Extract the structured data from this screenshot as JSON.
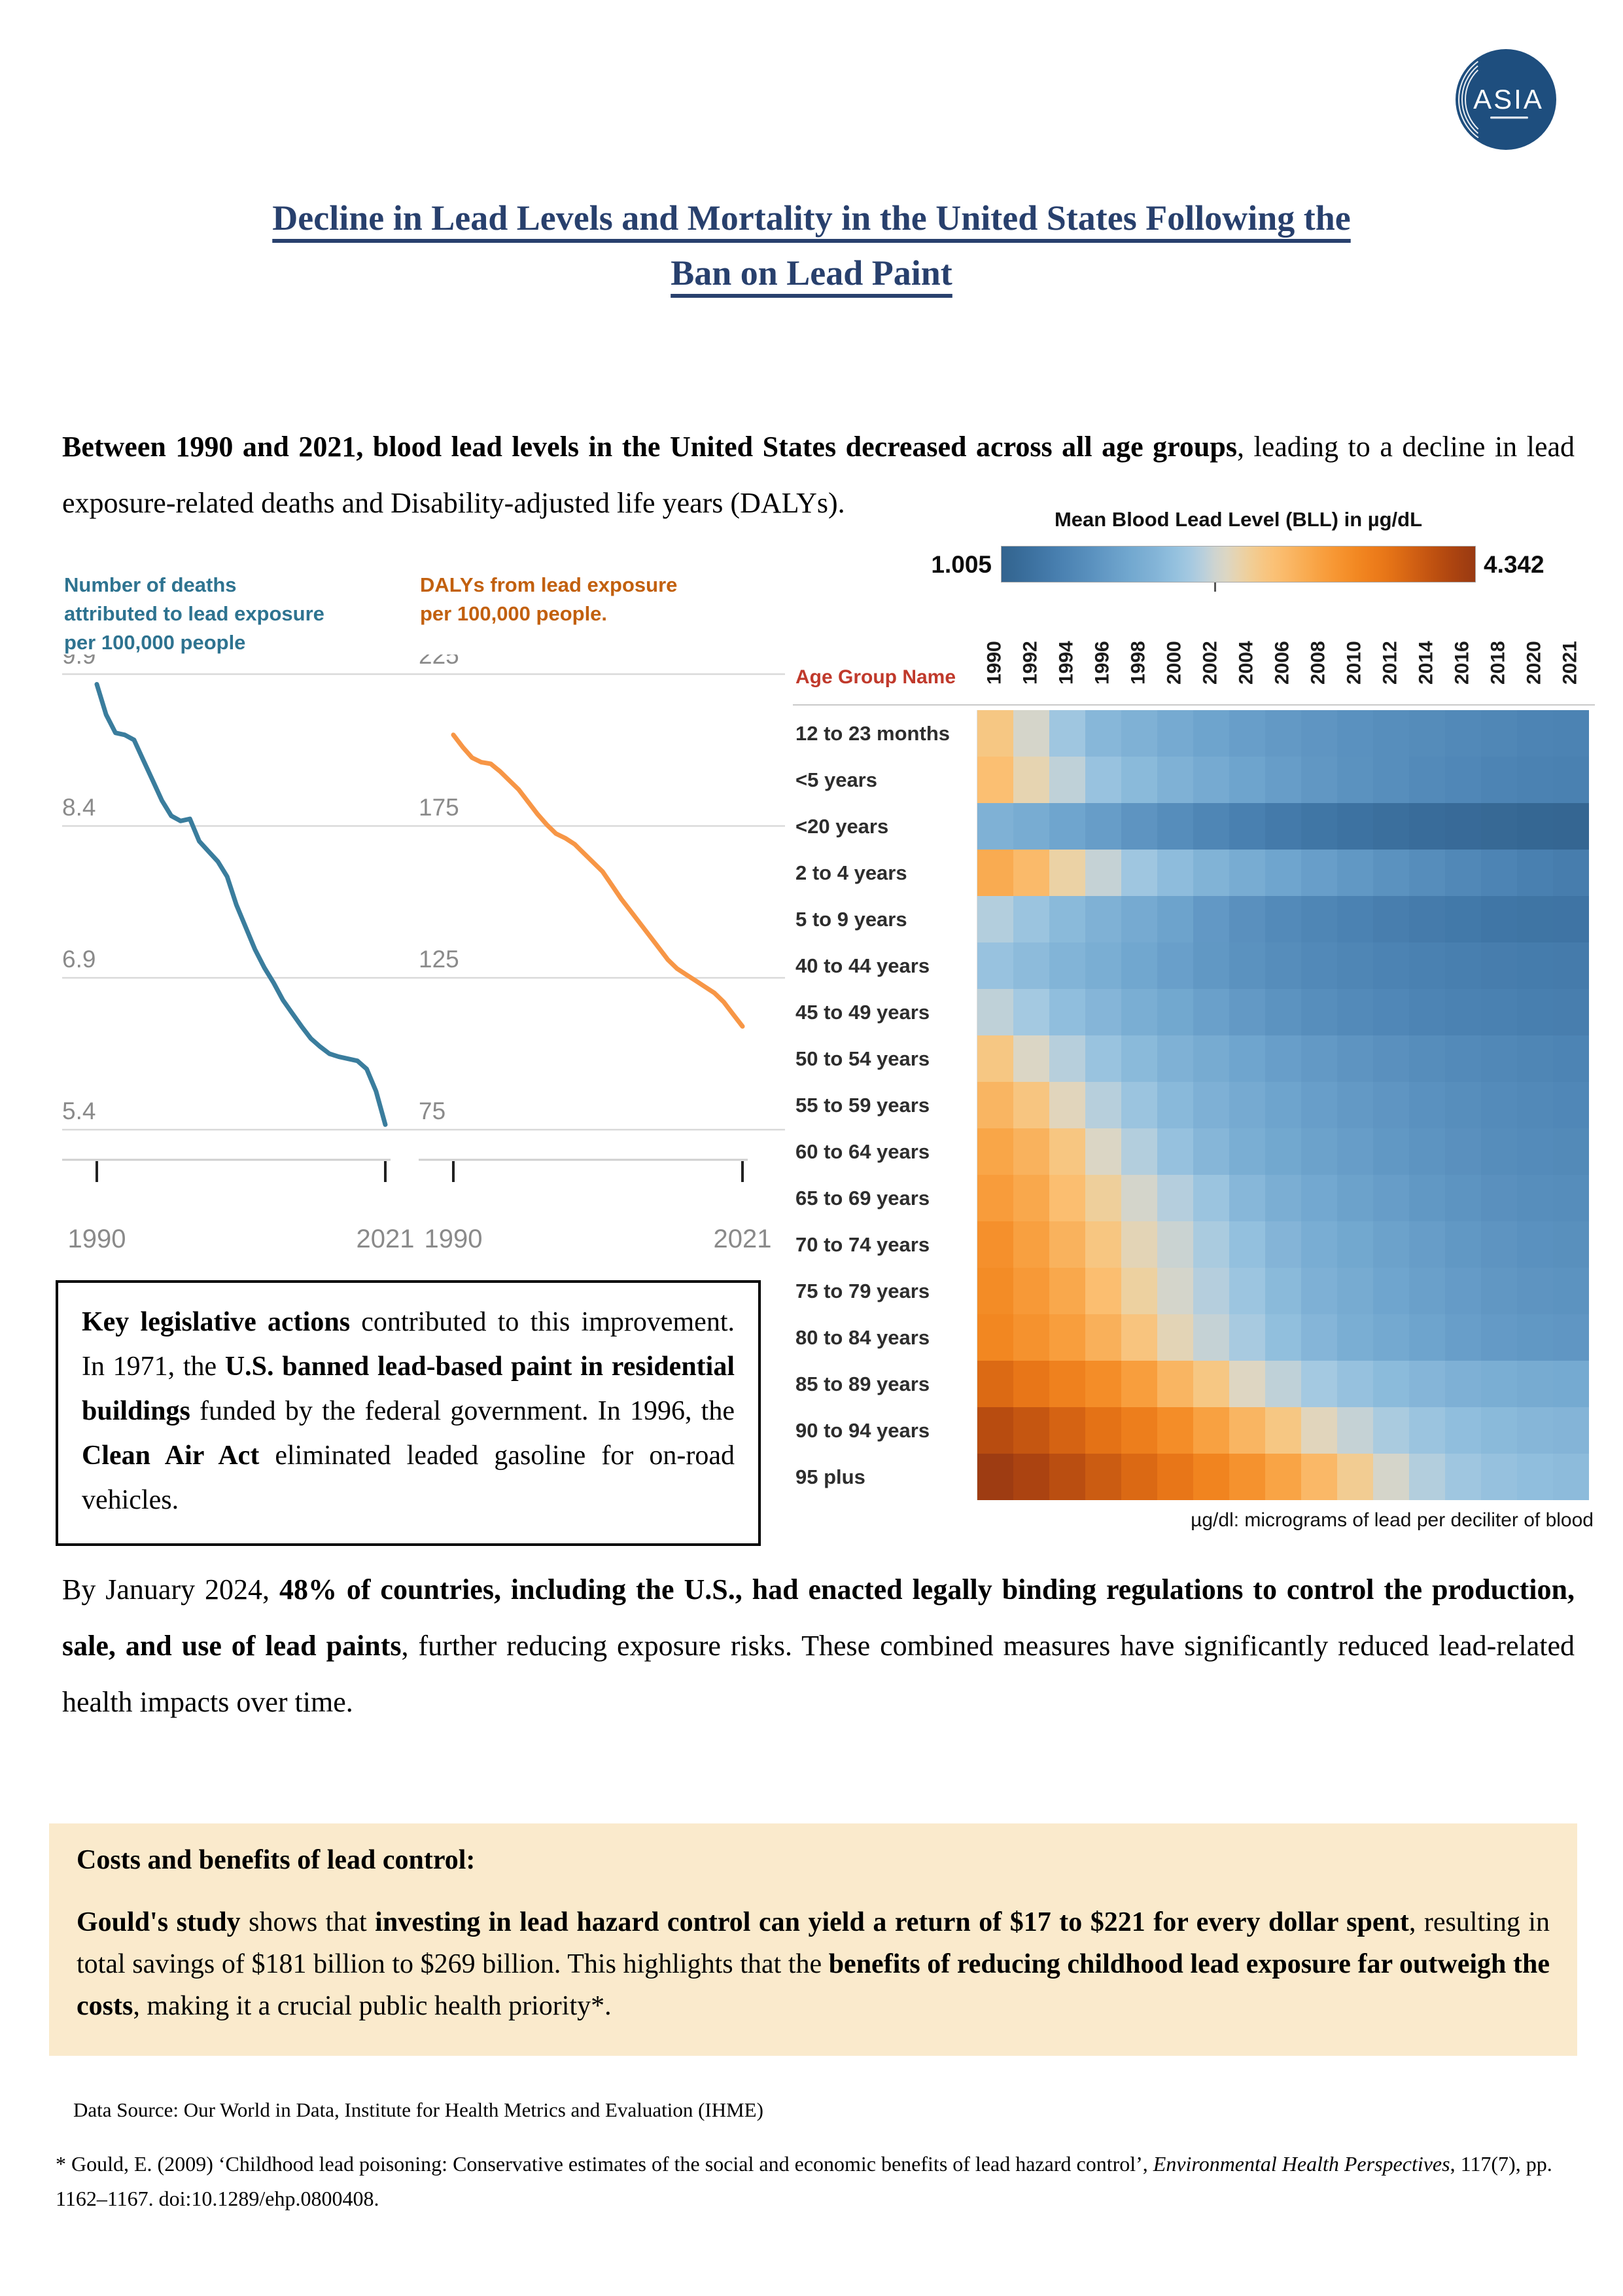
{
  "page": {
    "title_line1": "Decline in Lead Levels and Mortality in the United States Following the",
    "title_line2": "Ban on Lead Paint"
  },
  "logo": {
    "name": "ASIA"
  },
  "intro": {
    "segments": [
      {
        "t": "Between 1990 and 2021, blood lead levels in the United States decreased across all age groups",
        "b": true
      },
      {
        "t": ", leading to a decline in lead exposure-related deaths and Disability-adjusted life years (DALYs)."
      }
    ]
  },
  "key_box": {
    "segments": [
      {
        "t": "Key legislative actions",
        "b": true
      },
      {
        "t": " contributed to this improvement. In 1971, the "
      },
      {
        "t": "U.S. banned lead-based paint in residential buildings",
        "b": true
      },
      {
        "t": " funded by the federal government. In 1996, the "
      },
      {
        "t": "Clean Air Act",
        "b": true
      },
      {
        "t": " eliminated leaded gasoline for on-road vehicles."
      }
    ]
  },
  "paragraph2": {
    "segments": [
      {
        "t": "By January 2024, "
      },
      {
        "t": "48% of countries, including the U.S., had enacted legally binding regulations to control the production, sale, and use of lead paints",
        "b": true
      },
      {
        "t": ", further reducing exposure risks. These combined measures have significantly reduced lead-related health impacts over time."
      }
    ]
  },
  "benefits_box": {
    "heading": "Costs and benefits of lead control:",
    "segments": [
      {
        "t": "Gould's study",
        "b": true
      },
      {
        "t": " shows that "
      },
      {
        "t": "investing in lead hazard control can yield a return of $17 to $221 for every dollar spent",
        "b": true
      },
      {
        "t": ", resulting in total savings of $181 billion to $269 billion. This highlights that the "
      },
      {
        "t": "benefits of reducing childhood lead exposure far outweigh the costs",
        "b": true
      },
      {
        "t": ", making it a crucial public health priority*."
      }
    ]
  },
  "data_source": "Data Source: Our World in Data, Institute for Health Metrics and Evaluation (IHME)",
  "footnote": {
    "segments": [
      {
        "t": "* Gould, E. (2009) ‘Childhood lead poisoning: Conservative estimates of the social and economic benefits of lead hazard control’, "
      },
      {
        "t": "Environmental Health Perspectives",
        "i": true
      },
      {
        "t": ", 117(7), pp. 1162–1167. doi:10.1289/ehp.0800408."
      }
    ]
  },
  "heatmap_note": "µg/dl: micrograms of lead per deciliter of blood",
  "age_axis_label": "Age Group Name",
  "chart_data": [
    {
      "type": "line",
      "title": "Number of deaths\nattributed to lead exposure\nper 100,000 people",
      "title_color": "#2E7390",
      "color": "#3A7D9D",
      "x": [
        1990,
        1991,
        1992,
        1993,
        1994,
        1995,
        1996,
        1997,
        1998,
        1999,
        2000,
        2001,
        2002,
        2003,
        2004,
        2005,
        2006,
        2007,
        2008,
        2009,
        2010,
        2011,
        2012,
        2013,
        2014,
        2015,
        2016,
        2017,
        2018,
        2019,
        2020,
        2021
      ],
      "values": [
        9.8,
        9.5,
        9.32,
        9.3,
        9.25,
        9.05,
        8.85,
        8.65,
        8.5,
        8.45,
        8.47,
        8.25,
        8.15,
        8.05,
        7.9,
        7.62,
        7.4,
        7.18,
        7.0,
        6.85,
        6.68,
        6.55,
        6.42,
        6.3,
        6.22,
        6.15,
        6.12,
        6.1,
        6.08,
        6.0,
        5.78,
        5.45
      ],
      "yticks": [
        9.9,
        8.4,
        6.9,
        5.4
      ],
      "xticks": [
        "1990",
        "2021"
      ],
      "ylim": [
        4.8,
        10.1
      ],
      "grid": true
    },
    {
      "type": "line",
      "title": "DALYs from lead exposure\nper 100,000 people.",
      "title_color": "#C2600E",
      "color": "#F79646",
      "x": [
        1990,
        1991,
        1992,
        1993,
        1994,
        1995,
        1996,
        1997,
        1998,
        1999,
        2000,
        2001,
        2002,
        2003,
        2004,
        2005,
        2006,
        2007,
        2008,
        2009,
        2010,
        2011,
        2012,
        2013,
        2014,
        2015,
        2016,
        2017,
        2018,
        2019,
        2020,
        2021
      ],
      "values": [
        205,
        201,
        197.5,
        196,
        195.5,
        193,
        190,
        187,
        183,
        179,
        175.5,
        172.5,
        171,
        169,
        166,
        163,
        160,
        155.5,
        151,
        147,
        143,
        139,
        135,
        131,
        128,
        126,
        124,
        122,
        120,
        117,
        113,
        109
      ],
      "yticks": [
        225,
        175,
        125,
        75
      ],
      "xticks": [
        "1990",
        "2021"
      ],
      "ylim": [
        55,
        240
      ],
      "grid": true
    },
    {
      "type": "heatmap",
      "legend_title": "Mean Blood Lead Level (BLL) in µg/dL",
      "scale_min": 1.005,
      "scale_max": 4.342,
      "scale_min_label": "1.005",
      "scale_max_label": "4.342",
      "years": [
        "1990",
        "1992",
        "1994",
        "1996",
        "1998",
        "2000",
        "2002",
        "2004",
        "2006",
        "2008",
        "2010",
        "2012",
        "2014",
        "2016",
        "2018",
        "2020",
        "2021"
      ],
      "age_groups": [
        "12 to 23 months",
        "<5 years",
        "<20 years",
        "2 to 4 years",
        "5 to 9 years",
        "40 to 44 years",
        "45 to 49 years",
        "50 to 54 years",
        "55 to 59 years",
        "60 to 64 years",
        "65 to 69 years",
        "70 to 74 years",
        "75 to 79 years",
        "80 to 84 years",
        "85 to 89 years",
        "90 to 94 years",
        "95 plus"
      ],
      "values": [
        [
          2.85,
          2.55,
          2.3,
          2.12,
          2.05,
          1.95,
          1.87,
          1.8,
          1.74,
          1.69,
          1.64,
          1.6,
          1.57,
          1.53,
          1.5,
          1.47,
          1.45
        ],
        [
          2.95,
          2.66,
          2.45,
          2.25,
          2.15,
          2.05,
          1.95,
          1.86,
          1.78,
          1.71,
          1.65,
          1.6,
          1.55,
          1.51,
          1.47,
          1.44,
          1.42
        ],
        [
          2.05,
          1.97,
          1.88,
          1.78,
          1.68,
          1.58,
          1.49,
          1.41,
          1.34,
          1.28,
          1.23,
          1.19,
          1.15,
          1.12,
          1.09,
          1.06,
          1.05
        ],
        [
          3.15,
          3.0,
          2.7,
          2.47,
          2.3,
          2.18,
          2.07,
          1.97,
          1.88,
          1.8,
          1.72,
          1.65,
          1.58,
          1.52,
          1.46,
          1.41,
          1.38
        ],
        [
          2.4,
          2.27,
          2.15,
          2.05,
          1.95,
          1.85,
          1.73,
          1.63,
          1.55,
          1.49,
          1.44,
          1.39,
          1.35,
          1.32,
          1.29,
          1.27,
          1.26
        ],
        [
          2.25,
          2.17,
          2.08,
          2.0,
          1.9,
          1.81,
          1.72,
          1.65,
          1.58,
          1.53,
          1.49,
          1.45,
          1.42,
          1.4,
          1.38,
          1.36,
          1.35
        ],
        [
          2.45,
          2.33,
          2.2,
          2.1,
          2.0,
          1.91,
          1.82,
          1.74,
          1.66,
          1.6,
          1.55,
          1.51,
          1.47,
          1.44,
          1.42,
          1.4,
          1.39
        ],
        [
          2.85,
          2.58,
          2.42,
          2.26,
          2.15,
          2.05,
          1.96,
          1.88,
          1.8,
          1.74,
          1.68,
          1.63,
          1.59,
          1.55,
          1.52,
          1.49,
          1.47
        ],
        [
          3.05,
          2.87,
          2.62,
          2.42,
          2.27,
          2.14,
          2.04,
          1.95,
          1.87,
          1.8,
          1.74,
          1.69,
          1.64,
          1.6,
          1.56,
          1.53,
          1.51
        ],
        [
          3.2,
          3.08,
          2.86,
          2.58,
          2.4,
          2.24,
          2.11,
          2.0,
          1.91,
          1.84,
          1.78,
          1.72,
          1.67,
          1.63,
          1.59,
          1.56,
          1.54
        ],
        [
          3.3,
          3.18,
          2.96,
          2.74,
          2.54,
          2.41,
          2.27,
          2.12,
          2.01,
          1.92,
          1.84,
          1.78,
          1.72,
          1.67,
          1.63,
          1.6,
          1.58
        ],
        [
          3.42,
          3.26,
          3.08,
          2.86,
          2.64,
          2.49,
          2.36,
          2.22,
          2.09,
          1.99,
          1.91,
          1.84,
          1.78,
          1.72,
          1.68,
          1.64,
          1.62
        ],
        [
          3.47,
          3.33,
          3.18,
          2.96,
          2.72,
          2.54,
          2.41,
          2.28,
          2.15,
          2.04,
          1.96,
          1.88,
          1.82,
          1.76,
          1.71,
          1.68,
          1.66
        ],
        [
          3.52,
          3.4,
          3.28,
          3.1,
          2.88,
          2.64,
          2.47,
          2.35,
          2.21,
          2.1,
          2.0,
          1.93,
          1.86,
          1.8,
          1.75,
          1.72,
          1.7
        ],
        [
          3.82,
          3.7,
          3.58,
          3.45,
          3.28,
          3.05,
          2.85,
          2.6,
          2.45,
          2.33,
          2.24,
          2.16,
          2.1,
          2.04,
          2.0,
          1.96,
          1.94
        ],
        [
          4.1,
          4.0,
          3.88,
          3.75,
          3.62,
          3.45,
          3.25,
          3.05,
          2.85,
          2.62,
          2.47,
          2.36,
          2.27,
          2.2,
          2.15,
          2.11,
          2.09
        ],
        [
          4.3,
          4.2,
          4.08,
          3.95,
          3.83,
          3.7,
          3.55,
          3.4,
          3.22,
          3.02,
          2.78,
          2.55,
          2.4,
          2.3,
          2.24,
          2.2,
          2.17
        ]
      ],
      "colormap": [
        [
          1.005,
          "#33648f"
        ],
        [
          1.15,
          "#396c9a"
        ],
        [
          1.3,
          "#4177a7"
        ],
        [
          1.45,
          "#4c83b3"
        ],
        [
          1.6,
          "#578ebc"
        ],
        [
          1.75,
          "#649ac6"
        ],
        [
          1.9,
          "#71a7cf"
        ],
        [
          2.05,
          "#7fb1d5"
        ],
        [
          2.2,
          "#90bedd"
        ],
        [
          2.32,
          "#a2c8e1"
        ],
        [
          2.42,
          "#b7cfdc"
        ],
        [
          2.5,
          "#cdd4d1"
        ],
        [
          2.6,
          "#ded6c2"
        ],
        [
          2.7,
          "#ebd2a5"
        ],
        [
          2.82,
          "#f5c988"
        ],
        [
          2.95,
          "#fbbf72"
        ],
        [
          3.08,
          "#f9b25d"
        ],
        [
          3.22,
          "#f9a445"
        ],
        [
          3.38,
          "#f69430"
        ],
        [
          3.52,
          "#f28721"
        ],
        [
          3.65,
          "#ec7b1a"
        ],
        [
          3.78,
          "#e16f15"
        ],
        [
          3.9,
          "#d26113"
        ],
        [
          4.02,
          "#c25411"
        ],
        [
          4.15,
          "#b14710"
        ],
        [
          4.25,
          "#a43f11"
        ],
        [
          4.342,
          "#993a12"
        ]
      ]
    }
  ]
}
